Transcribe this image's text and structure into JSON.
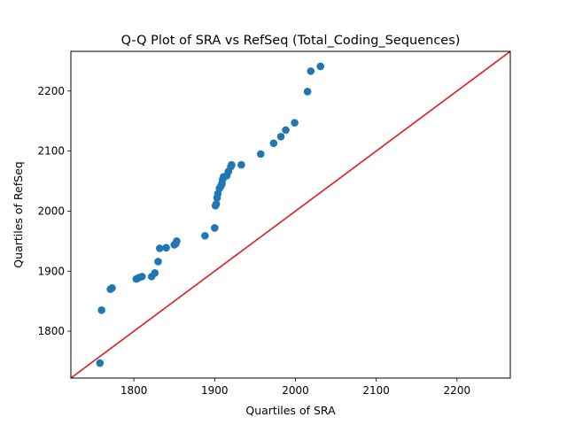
{
  "chart_data": {
    "type": "scatter",
    "title": "Q-Q Plot of SRA vs RefSeq (Total_Coding_Sequences)",
    "xlabel": "Quartiles of SRA",
    "ylabel": "Quartiles of RefSeq",
    "xlim": [
      1722,
      2266
    ],
    "ylim": [
      1722,
      2266
    ],
    "xticks": [
      1800,
      1900,
      2000,
      2100,
      2200
    ],
    "yticks": [
      1800,
      1900,
      2000,
      2100,
      2200
    ],
    "grid": false,
    "point_color": "#1f77b4",
    "reference_line": {
      "color": "#e41a1c",
      "slope": 1,
      "intercept": 0
    },
    "points": [
      [
        1758,
        1747
      ],
      [
        1760,
        1835
      ],
      [
        1771,
        1870
      ],
      [
        1773,
        1872
      ],
      [
        1803,
        1887
      ],
      [
        1806,
        1889
      ],
      [
        1810,
        1891
      ],
      [
        1822,
        1891
      ],
      [
        1826,
        1897
      ],
      [
        1830,
        1916
      ],
      [
        1832,
        1938
      ],
      [
        1840,
        1939
      ],
      [
        1850,
        1944
      ],
      [
        1852,
        1946
      ],
      [
        1853,
        1950
      ],
      [
        1888,
        1959
      ],
      [
        1900,
        1972
      ],
      [
        1901,
        2009
      ],
      [
        1902,
        2012
      ],
      [
        1903,
        2022
      ],
      [
        1904,
        2029
      ],
      [
        1906,
        2038
      ],
      [
        1908,
        2042
      ],
      [
        1909,
        2046
      ],
      [
        1910,
        2053
      ],
      [
        1911,
        2057
      ],
      [
        1915,
        2059
      ],
      [
        1917,
        2066
      ],
      [
        1920,
        2074
      ],
      [
        1921,
        2077
      ],
      [
        1933,
        2077
      ],
      [
        1957,
        2095
      ],
      [
        1973,
        2113
      ],
      [
        1982,
        2124
      ],
      [
        1988,
        2135
      ],
      [
        1999,
        2147
      ],
      [
        2015,
        2199
      ],
      [
        2019,
        2233
      ],
      [
        2031,
        2241
      ]
    ]
  }
}
